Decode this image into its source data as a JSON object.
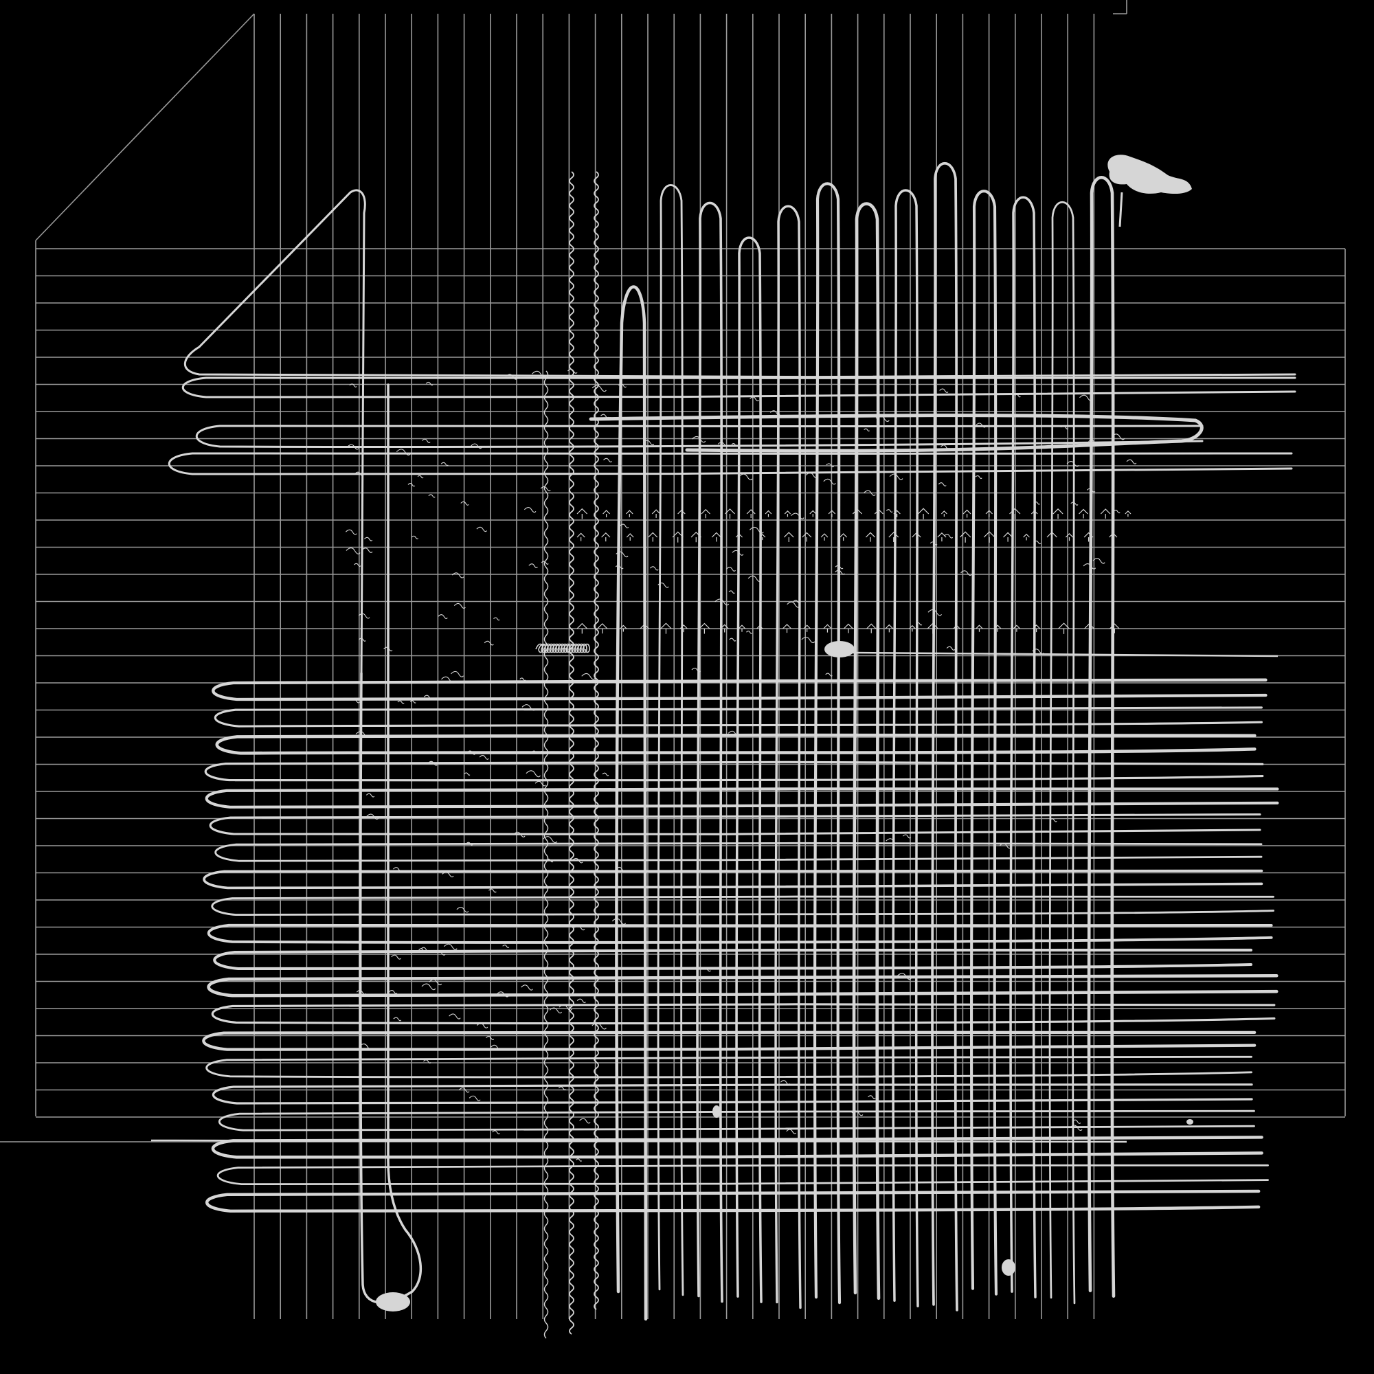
{
  "artwork": {
    "background_color": "#000000",
    "grid_stroke_color": "#9a9a9a",
    "ink_color": "#d6d6d6",
    "vertical_strip_count": 33,
    "horizontal_strip_count": 33,
    "horizontal_loop_count": 20,
    "vertical_loop_count": 12
  }
}
